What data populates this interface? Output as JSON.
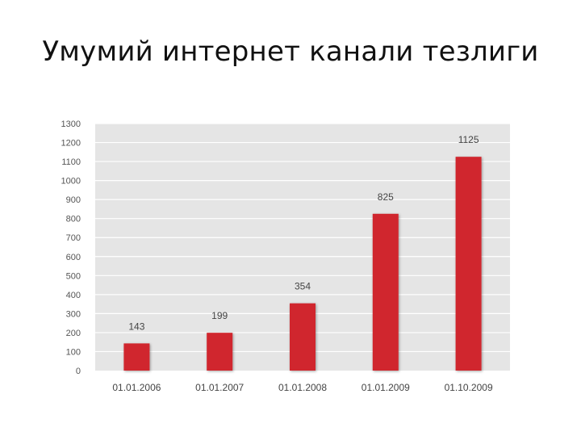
{
  "slide": {
    "title": "Умумий интернет канали тезлиги"
  },
  "colors": {
    "bar": "#d0282d",
    "plot_bg": "#e5e5e5",
    "grid": "#ffffff"
  },
  "chart_data": {
    "type": "bar",
    "categories": [
      "01.01.2006",
      "01.01.2007",
      "01.01.2008",
      "01.01.2009",
      "01.10.2009"
    ],
    "values": [
      143,
      199,
      354,
      825,
      1125
    ],
    "data_labels": [
      "143",
      "199",
      "354",
      "825",
      "1125"
    ],
    "ylim": [
      0,
      1300
    ],
    "yticks": [
      0,
      100,
      200,
      300,
      400,
      500,
      600,
      700,
      800,
      900,
      1000,
      1100,
      1200,
      1300
    ],
    "title": "Умумий интернет канали тезлиги",
    "xlabel": "",
    "ylabel": "",
    "grid": true,
    "legend": "none"
  }
}
